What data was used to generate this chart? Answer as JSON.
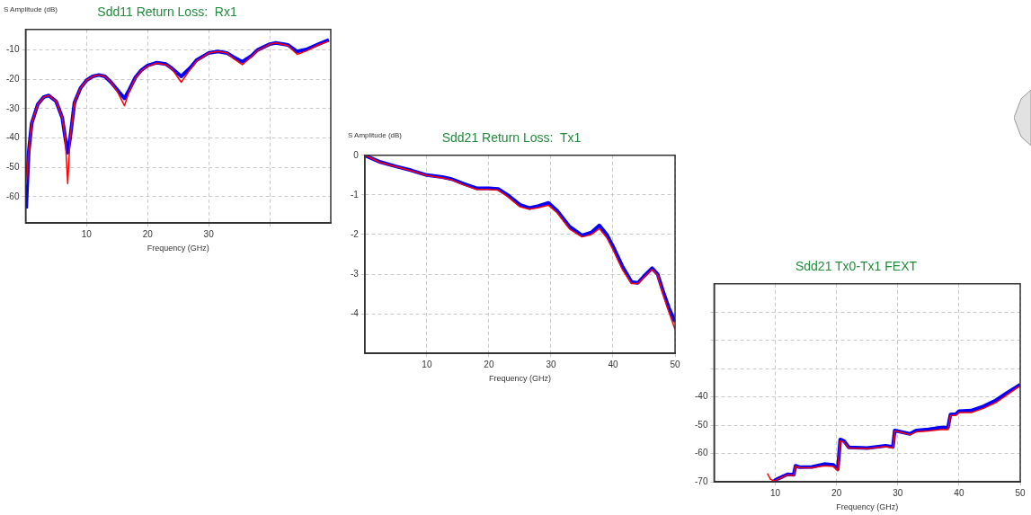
{
  "chart_data": [
    {
      "type": "line",
      "title": "Sdd11 Return Loss:  Rx1",
      "xlabel": "Frequency (GHz)",
      "ylabel": "S Amplitude (dB)",
      "xlim": [
        0,
        50
      ],
      "ylim": [
        -69,
        -3
      ],
      "xticks": [
        10,
        20,
        30,
        {
          "value": 40,
          "label": null
        }
      ],
      "yticks": [
        -60,
        -50,
        -40,
        -30,
        -20,
        -10
      ],
      "grid": true,
      "legend": false,
      "x": [
        0.1,
        0.5,
        1,
        2,
        3,
        3.8,
        5,
        6,
        6.5,
        6.9,
        7.3,
        8,
        9,
        10,
        11,
        12,
        13,
        14,
        15,
        16.2,
        17,
        18,
        19,
        20,
        21.5,
        23,
        24,
        25.5,
        27,
        28,
        30,
        31.5,
        33,
        34,
        35.5,
        37,
        38,
        40,
        41,
        43,
        44.5,
        46,
        48,
        49.7
      ],
      "series": [
        {
          "color": "#0000ff",
          "values": [
            -64,
            -45,
            -35,
            -28.5,
            -26,
            -25.5,
            -27.5,
            -33,
            -40,
            -45,
            -40,
            -28,
            -23,
            -20.3,
            -19,
            -18.5,
            -19,
            -21,
            -23.5,
            -26.5,
            -23.5,
            -19.3,
            -16.8,
            -15.3,
            -14.3,
            -14.8,
            -16.3,
            -19,
            -16,
            -13.5,
            -11,
            -10.5,
            -11,
            -12.3,
            -14,
            -12,
            -10,
            -8,
            -7.6,
            -8.3,
            -10.5,
            -9.8,
            -8,
            -6.5
          ]
        },
        {
          "color": "#ff0000",
          "values": [
            -56,
            -45,
            -35,
            -28.5,
            -26,
            -25.5,
            -27.5,
            -33,
            -40,
            -55.5,
            -40,
            -28,
            -23,
            -20.3,
            -19,
            -18.5,
            -19,
            -21,
            -24,
            -29,
            -24,
            -19.5,
            -17,
            -15.5,
            -14.5,
            -15,
            -16.5,
            -21,
            -16.5,
            -13.8,
            -11,
            -10.5,
            -11,
            -12.8,
            -15,
            -12.3,
            -10.2,
            -8,
            -7.6,
            -8.5,
            -11.5,
            -10.3,
            -8.2,
            -7
          ]
        }
      ]
    },
    {
      "type": "line",
      "title": "Sdd21 Return Loss:  Tx1",
      "xlabel": "Frequency (GHz)",
      "ylabel": "S Amplitude (dB)",
      "xlim": [
        0,
        50
      ],
      "ylim": [
        -5,
        0
      ],
      "xticks": [
        10,
        20,
        30,
        40,
        50
      ],
      "yticks": [
        -4,
        -3,
        -2,
        -1,
        0
      ],
      "grid": true,
      "legend": false,
      "x": [
        0,
        2.5,
        5,
        7.5,
        10,
        12.5,
        14,
        16,
        18,
        20,
        21.5,
        23,
        25,
        26.5,
        28,
        29.6,
        31,
        33,
        35,
        36.5,
        37.8,
        39,
        40,
        41.5,
        43,
        44,
        45,
        46.3,
        47.2,
        48,
        49,
        50
      ],
      "series": [
        {
          "color": "#0000ff",
          "values": [
            0,
            -0.17,
            -0.28,
            -0.38,
            -0.5,
            -0.55,
            -0.6,
            -0.72,
            -0.83,
            -0.83,
            -0.85,
            -1,
            -1.25,
            -1.33,
            -1.28,
            -1.2,
            -1.4,
            -1.8,
            -2.02,
            -1.95,
            -1.77,
            -2,
            -2.3,
            -2.8,
            -3.2,
            -3.22,
            -3.05,
            -2.85,
            -3,
            -3.4,
            -3.85,
            -4.2
          ]
        },
        {
          "color": "#ff0000",
          "values": [
            0,
            -0.18,
            -0.29,
            -0.39,
            -0.51,
            -0.57,
            -0.62,
            -0.75,
            -0.86,
            -0.86,
            -0.88,
            -1.04,
            -1.3,
            -1.36,
            -1.32,
            -1.26,
            -1.45,
            -1.86,
            -2.06,
            -2,
            -1.85,
            -2.08,
            -2.38,
            -2.88,
            -3.24,
            -3.24,
            -3.08,
            -2.88,
            -3.04,
            -3.48,
            -3.95,
            -4.4
          ]
        }
      ]
    },
    {
      "type": "line",
      "title": "Sdd21 Tx0-Tx1 FEXT",
      "xlabel": "Frequency (GHz)",
      "xlim": [
        0,
        50
      ],
      "ylim": [
        -70,
        0
      ],
      "xticks": [
        10,
        20,
        30,
        40,
        50
      ],
      "yticks": [
        -70,
        -60,
        -50,
        -40,
        {
          "value": -30,
          "label": null
        },
        {
          "value": -20,
          "label": null
        },
        {
          "value": -10,
          "label": null
        }
      ],
      "grid": true,
      "legend": false,
      "x": [
        8.7,
        9.2,
        9.7,
        10,
        11,
        12,
        13,
        13.3,
        14,
        16,
        18,
        19.5,
        20.2,
        20.6,
        21.2,
        22,
        25,
        28,
        29.2,
        29.5,
        30.5,
        32,
        33,
        35,
        37,
        38.2,
        38.6,
        39.5,
        40,
        42,
        44,
        46,
        48,
        50
      ],
      "series": [
        {
          "color": "#0000ff",
          "values": [
            null,
            null,
            -70,
            -69.3,
            -68.3,
            -67.3,
            -67.5,
            -64.3,
            -64.8,
            -64.7,
            -63.7,
            -64,
            -65.5,
            -55,
            -55.5,
            -57.8,
            -58,
            -57.2,
            -57.6,
            -51.8,
            -52.3,
            -53,
            -51.8,
            -51.4,
            -50.8,
            -50.8,
            -46.2,
            -46,
            -45,
            -44.8,
            -43.3,
            -41.2,
            -38.3,
            -35.6
          ]
        },
        {
          "color": "#ff0000",
          "values": [
            -67,
            -69,
            -69.6,
            -69.5,
            -68.5,
            -67.5,
            -67.8,
            -64.5,
            -65,
            -65,
            -64.3,
            -64.5,
            -66,
            -55.5,
            -56,
            -58,
            -58.3,
            -57.5,
            -58,
            -52,
            -52.5,
            -53.3,
            -52.3,
            -52,
            -51.5,
            -51.5,
            -46.5,
            -46.5,
            -45.5,
            -45.5,
            -44,
            -42,
            -39,
            -36
          ]
        }
      ]
    }
  ]
}
